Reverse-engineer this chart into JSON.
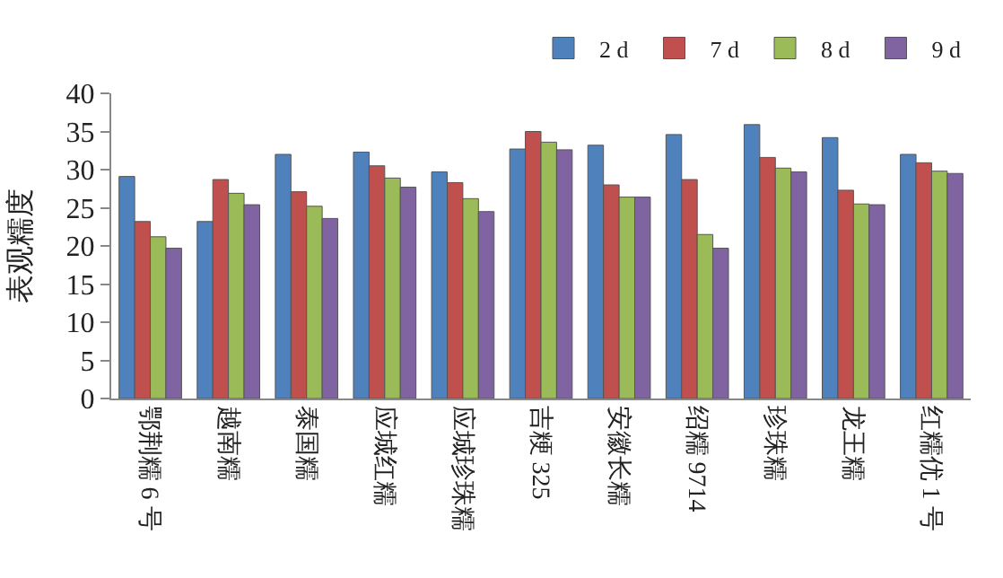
{
  "chart_data": {
    "type": "bar",
    "ylabel": "表观糯度",
    "categories": [
      "鄂荆糯 6 号",
      "越南糯",
      "泰国糯",
      "应城红糯",
      "应城珍珠糯",
      "吉粳 325",
      "安徽长糯",
      "绍糯 9714",
      "珍珠糯",
      "龙王糯",
      "红糯优 1 号"
    ],
    "series": [
      {
        "name": "2 d",
        "color": "#4f81bd",
        "values": [
          29.1,
          23.2,
          32.0,
          32.3,
          29.7,
          32.7,
          33.2,
          34.6,
          35.9,
          34.2,
          32.0
        ]
      },
      {
        "name": "7 d",
        "color": "#c0504d",
        "values": [
          23.2,
          28.7,
          27.1,
          30.5,
          28.3,
          35.0,
          28.0,
          28.7,
          31.6,
          27.3,
          30.9
        ]
      },
      {
        "name": "8 d",
        "color": "#9bbb59",
        "values": [
          21.2,
          26.9,
          25.2,
          28.9,
          26.2,
          33.6,
          26.4,
          21.5,
          30.2,
          25.5,
          29.8
        ]
      },
      {
        "name": "9 d",
        "color": "#8064a2",
        "values": [
          19.7,
          25.4,
          23.6,
          27.7,
          24.5,
          32.6,
          26.4,
          19.7,
          29.7,
          25.4,
          29.5
        ]
      }
    ],
    "ylim": [
      0,
      40
    ],
    "yticks": [
      0,
      5,
      10,
      15,
      20,
      25,
      30,
      35,
      40
    ],
    "legend": "top right"
  }
}
